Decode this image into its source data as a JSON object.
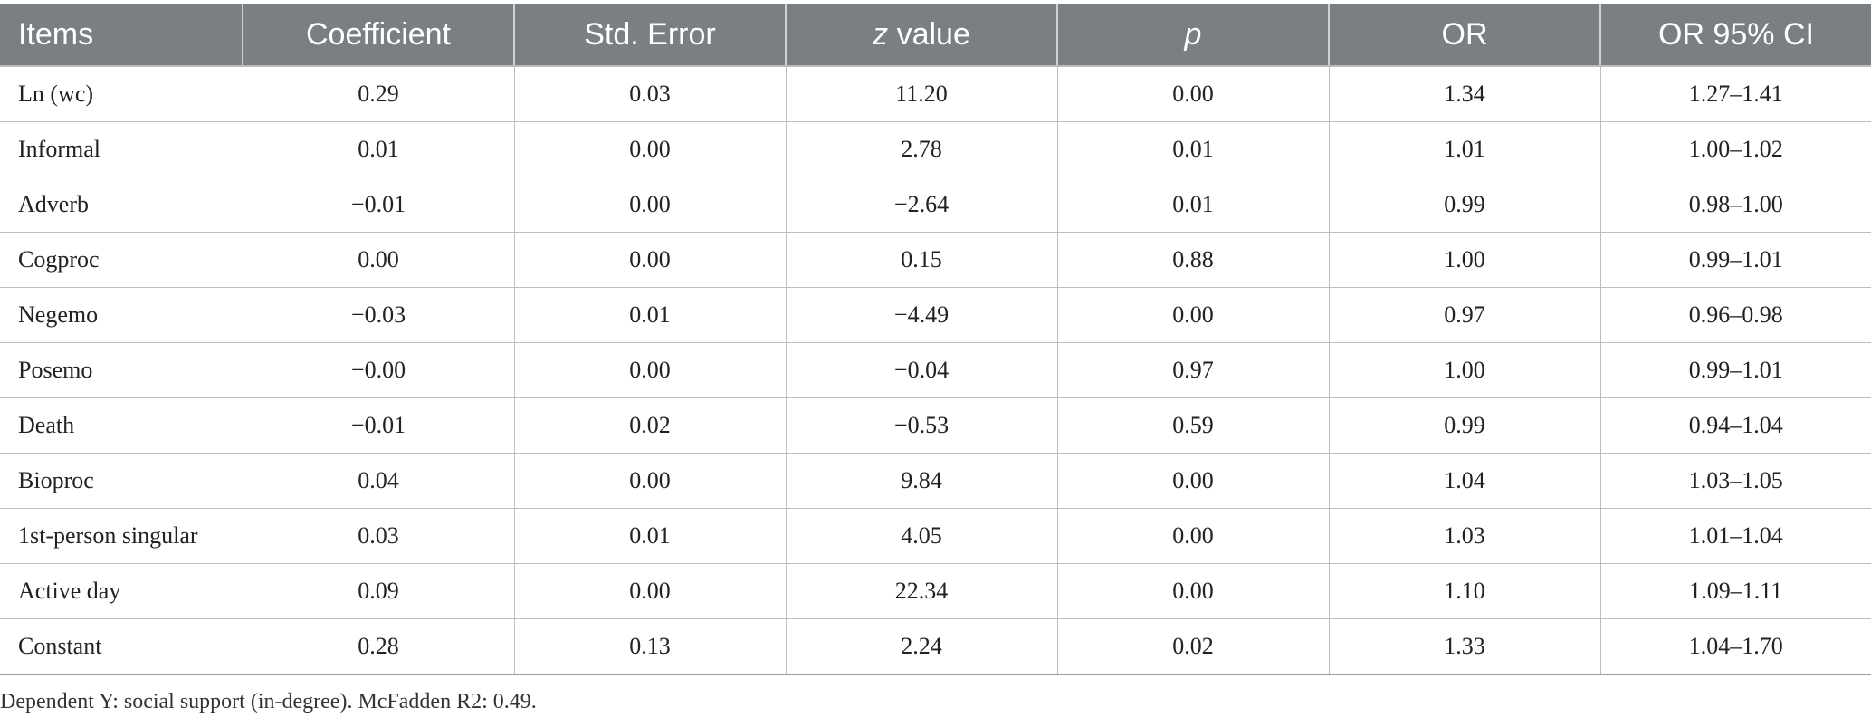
{
  "table": {
    "headers": [
      {
        "text": "Items",
        "italic_prefix": "",
        "rest": "Items"
      },
      {
        "text": "Coefficient",
        "italic_prefix": "",
        "rest": "Coefficient"
      },
      {
        "text": "Std. Error",
        "italic_prefix": "",
        "rest": "Std. Error"
      },
      {
        "text": "z value",
        "italic_prefix": "z",
        "rest": " value"
      },
      {
        "text": "p",
        "italic_prefix": "p",
        "rest": ""
      },
      {
        "text": "OR",
        "italic_prefix": "",
        "rest": "OR"
      },
      {
        "text": "OR 95% CI",
        "italic_prefix": "",
        "rest": "OR 95% CI"
      }
    ],
    "rows": [
      [
        "Ln (wc)",
        "0.29",
        "0.03",
        "11.20",
        "0.00",
        "1.34",
        "1.27–1.41"
      ],
      [
        "Informal",
        "0.01",
        "0.00",
        "2.78",
        "0.01",
        "1.01",
        "1.00–1.02"
      ],
      [
        "Adverb",
        "−0.01",
        "0.00",
        "−2.64",
        "0.01",
        "0.99",
        "0.98–1.00"
      ],
      [
        "Cogproc",
        "0.00",
        "0.00",
        "0.15",
        "0.88",
        "1.00",
        "0.99–1.01"
      ],
      [
        "Negemo",
        "−0.03",
        "0.01",
        "−4.49",
        "0.00",
        "0.97",
        "0.96–0.98"
      ],
      [
        "Posemo",
        "−0.00",
        "0.00",
        "−0.04",
        "0.97",
        "1.00",
        "0.99–1.01"
      ],
      [
        "Death",
        "−0.01",
        "0.02",
        "−0.53",
        "0.59",
        "0.99",
        "0.94–1.04"
      ],
      [
        "Bioproc",
        "0.04",
        "0.00",
        "9.84",
        "0.00",
        "1.04",
        "1.03–1.05"
      ],
      [
        "1st-person singular",
        "0.03",
        "0.01",
        "4.05",
        "0.00",
        "1.03",
        "1.01–1.04"
      ],
      [
        "Active day",
        "0.09",
        "0.00",
        "22.34",
        "0.00",
        "1.10",
        "1.09–1.11"
      ],
      [
        "Constant",
        "0.28",
        "0.13",
        "2.24",
        "0.02",
        "1.33",
        "1.04–1.70"
      ]
    ]
  },
  "footnote": "Dependent Y: social support (in-degree). McFadden R2: 0.49.",
  "colors": {
    "header_bg": "#7a7f82",
    "header_text": "#ffffff",
    "grid": "#bdbdbd"
  }
}
